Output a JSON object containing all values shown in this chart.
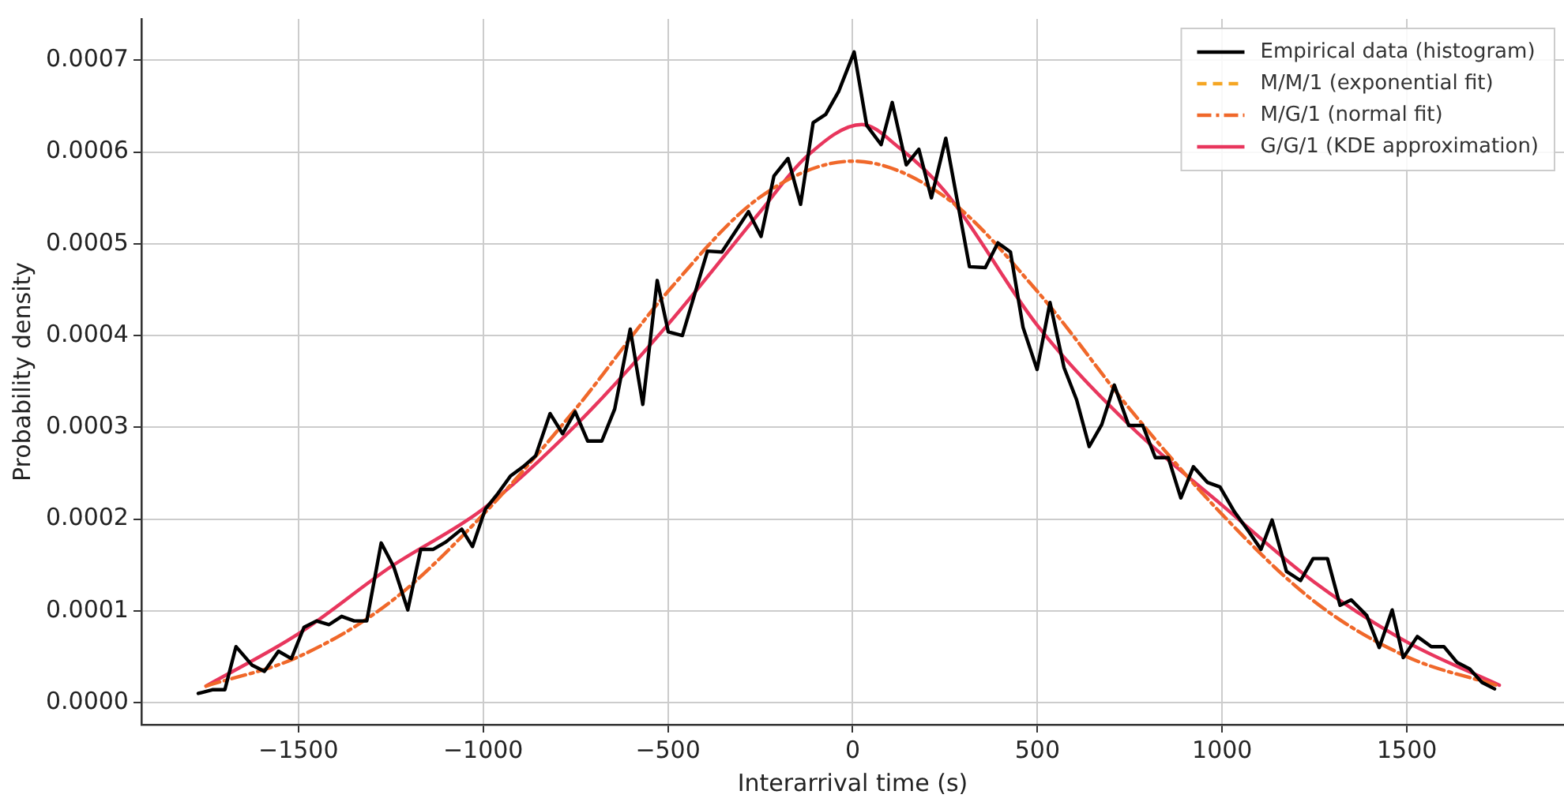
{
  "chart_data": {
    "type": "line",
    "xlabel": "Interarrival time (s)",
    "ylabel": "Probability density",
    "xlim": [
      -1925,
      1925
    ],
    "ylim": [
      -2.4e-05,
      0.000745
    ],
    "xticks": [
      {
        "value": -1500,
        "label": "−1500"
      },
      {
        "value": -1000,
        "label": "−1000"
      },
      {
        "value": -500,
        "label": "−500"
      },
      0,
      500,
      1000,
      1500
    ],
    "yticks": [
      {
        "value": 0,
        "label": "0.0000"
      },
      {
        "value": 0.0001,
        "label": "0.0001"
      },
      {
        "value": 0.0002,
        "label": "0.0002"
      },
      {
        "value": 0.0003,
        "label": "0.0003"
      },
      {
        "value": 0.0004,
        "label": "0.0004"
      },
      {
        "value": 0.0005,
        "label": "0.0005"
      },
      {
        "value": 0.0006,
        "label": "0.0006"
      },
      {
        "value": 0.0007,
        "label": "0.0007"
      }
    ],
    "grid": true,
    "legend": "top right",
    "marker": "none",
    "series": [
      {
        "name": "Empirical data (histogram)",
        "color": "#000000",
        "line_style": "solid",
        "x": [
          -1771,
          -1733,
          -1699,
          -1669,
          -1626,
          -1592,
          -1554,
          -1519,
          -1485,
          -1451,
          -1417,
          -1383,
          -1349,
          -1315,
          -1276,
          -1242,
          -1204,
          -1169,
          -1135,
          -1101,
          -1058,
          -1029,
          -994,
          -960,
          -926,
          -892,
          -858,
          -819,
          -785,
          -751,
          -717,
          -679,
          -644,
          -602,
          -568,
          -529,
          -499,
          -461,
          -393,
          -354,
          -282,
          -248,
          -213,
          -175,
          -141,
          -107,
          -73,
          -38,
          4,
          38,
          77,
          107,
          145,
          179,
          213,
          252,
          316,
          359,
          393,
          427,
          461,
          499,
          534,
          572,
          606,
          640,
          674,
          708,
          747,
          785,
          819,
          854,
          888,
          922,
          960,
          994,
          1033,
          1071,
          1105,
          1135,
          1174,
          1212,
          1246,
          1285,
          1319,
          1349,
          1391,
          1425,
          1460,
          1490,
          1528,
          1566,
          1600,
          1635,
          1669,
          1703,
          1737
        ],
        "values": [
          1e-05,
          1.4e-05,
          1.4e-05,
          6.1e-05,
          4.1e-05,
          3.4e-05,
          5.6e-05,
          4.8e-05,
          8.2e-05,
          8.9e-05,
          8.5e-05,
          9.4e-05,
          8.9e-05,
          8.9e-05,
          0.000174,
          0.000148,
          0.000101,
          0.000167,
          0.000167,
          0.000175,
          0.000189,
          0.00017,
          0.000211,
          0.000228,
          0.000247,
          0.000257,
          0.000269,
          0.000315,
          0.000293,
          0.000317,
          0.000285,
          0.000285,
          0.00032,
          0.000407,
          0.000325,
          0.00046,
          0.000404,
          0.0004,
          0.000492,
          0.000491,
          0.000535,
          0.000508,
          0.000574,
          0.000593,
          0.000543,
          0.000632,
          0.000641,
          0.000666,
          0.000709,
          0.000629,
          0.000608,
          0.000654,
          0.000586,
          0.000603,
          0.00055,
          0.000615,
          0.000475,
          0.000474,
          0.000501,
          0.000491,
          0.000409,
          0.000363,
          0.000436,
          0.000365,
          0.00033,
          0.000279,
          0.000303,
          0.000346,
          0.000302,
          0.000302,
          0.000267,
          0.000267,
          0.000223,
          0.000257,
          0.00024,
          0.000235,
          0.000208,
          0.000187,
          0.000167,
          0.000199,
          0.000143,
          0.000133,
          0.000157,
          0.000157,
          0.000106,
          0.000112,
          9.5e-05,
          6e-05,
          0.000101,
          4.9e-05,
          7.2e-05,
          6.1e-05,
          6.1e-05,
          4.4e-05,
          3.7e-05,
          2.2e-05,
          1.5e-05
        ]
      },
      {
        "name": "M/M/1 (exponential fit)",
        "color": "#f5a623",
        "line_style": "dashed"
      },
      {
        "name": "M/G/1 (normal fit)",
        "color": "#f0682a",
        "line_style": "dashdot",
        "x": [
          -1750,
          -1500,
          -1250,
          -1000,
          -750,
          -500,
          -250,
          0,
          250,
          500,
          750,
          1000,
          1250,
          1500,
          1750
        ],
        "values": [
          1.8e-05,
          5e-05,
          0.00011,
          0.000205,
          0.00032,
          0.000448,
          0.000551,
          0.00059,
          0.000551,
          0.000448,
          0.00032,
          0.000205,
          0.00011,
          5e-05,
          1.8e-05
        ]
      },
      {
        "name": "G/G/1 (KDE approximation)",
        "color": "#e8365d",
        "line_style": "solid",
        "x": [
          -1750,
          -1500,
          -1250,
          -1000,
          -750,
          -500,
          -250,
          -125,
          25,
          125,
          250,
          500,
          750,
          1000,
          1250,
          1500,
          1750
        ],
        "values": [
          1.8e-05,
          7.5e-05,
          0.000148,
          0.000211,
          0.000302,
          0.000412,
          0.000535,
          0.000595,
          0.00063,
          0.000605,
          0.000557,
          0.000411,
          0.000302,
          0.000215,
          0.000131,
          6.6e-05,
          1.9e-05
        ]
      }
    ]
  }
}
